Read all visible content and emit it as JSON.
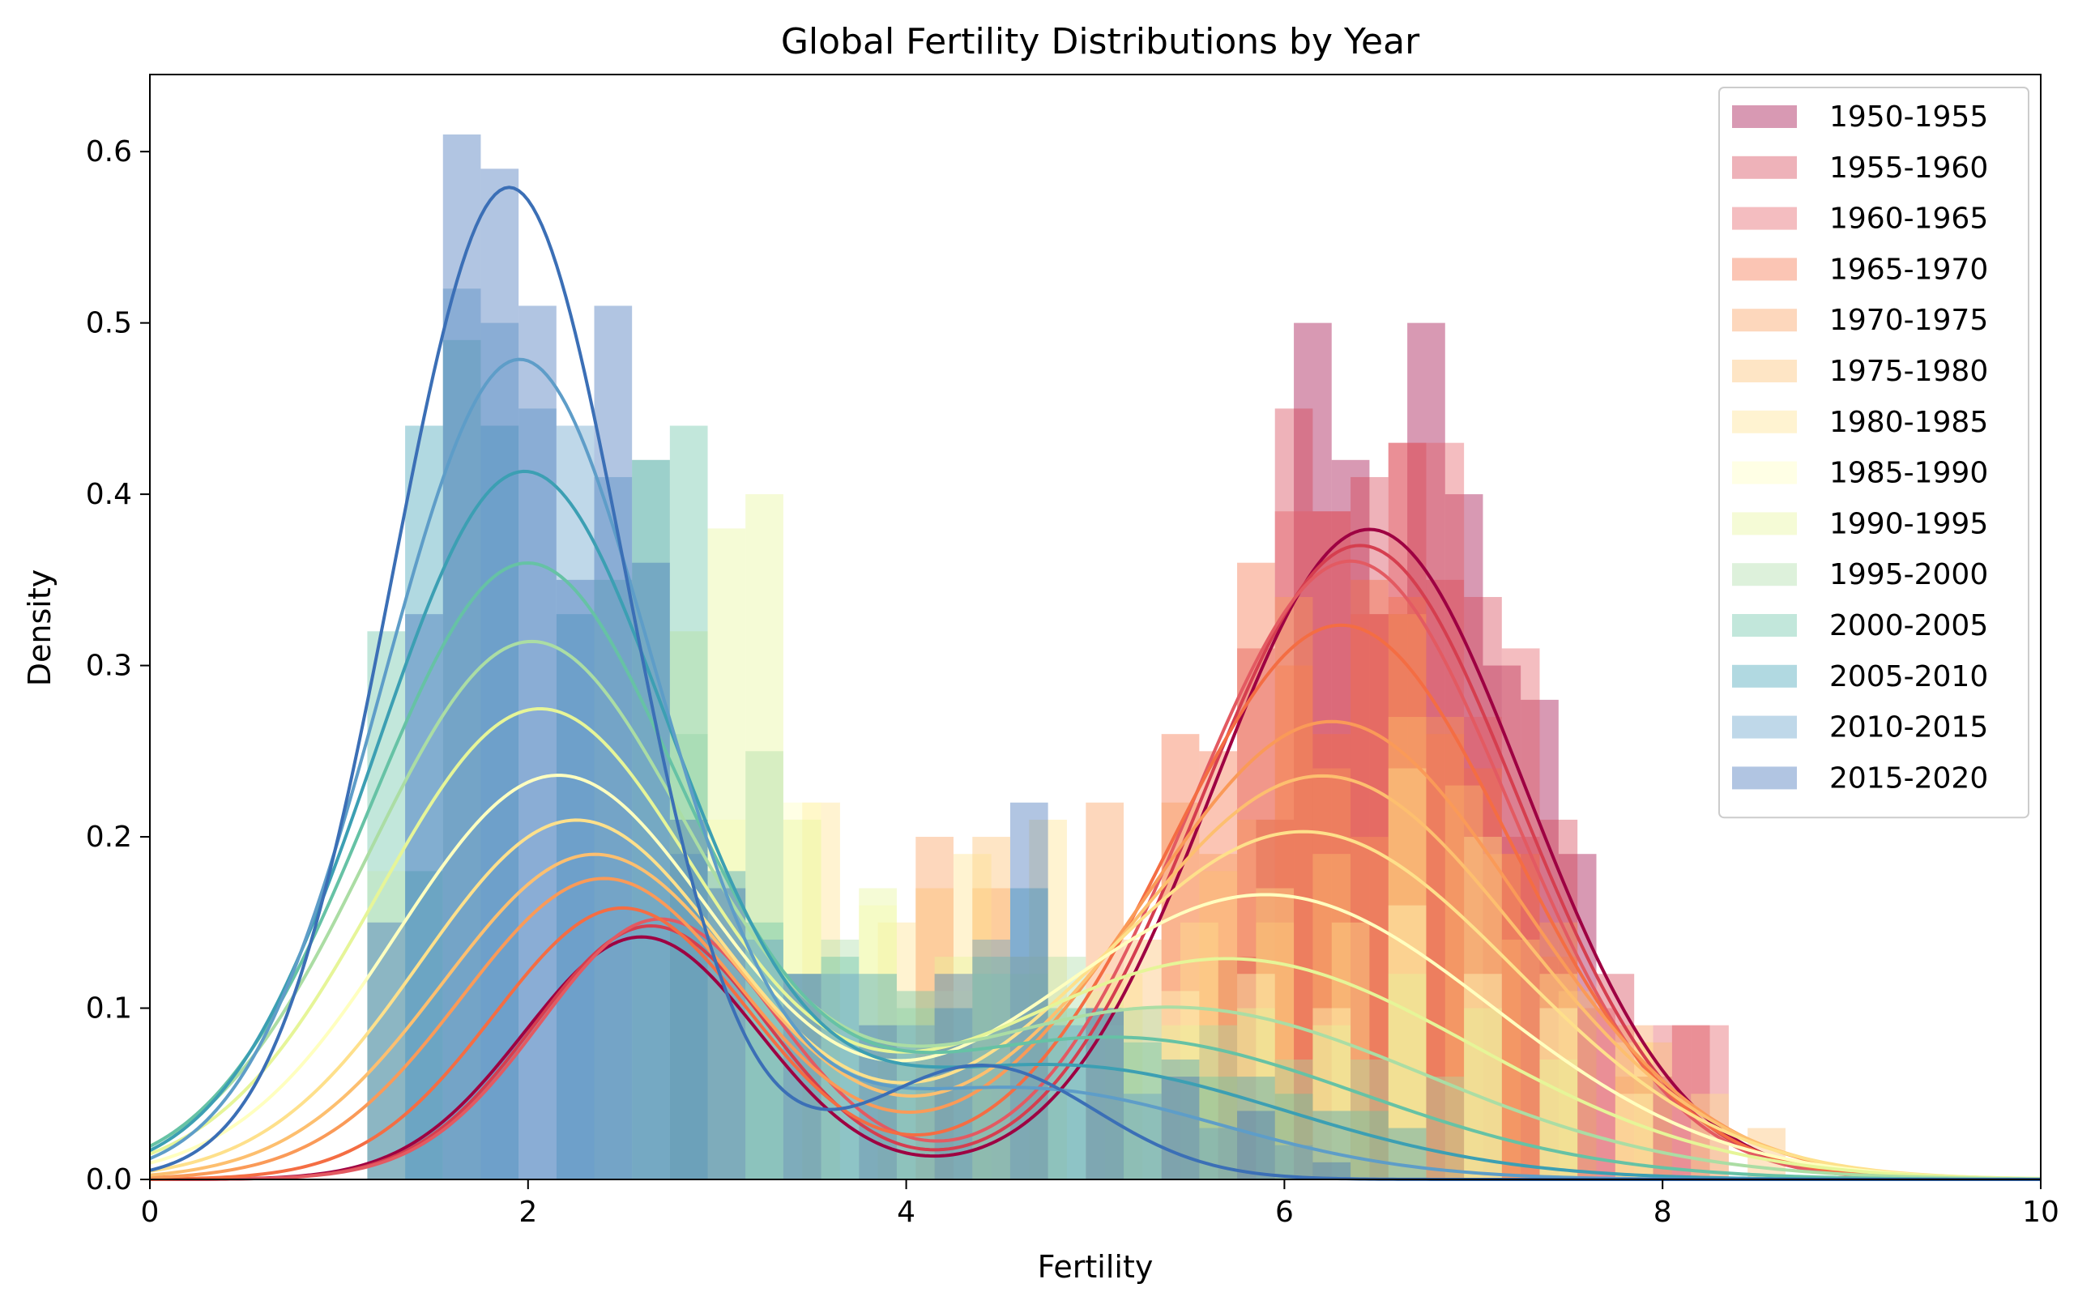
{
  "chart_data": {
    "type": "histogram",
    "title": "Global Fertility Distributions by Year",
    "xlabel": "Fertility",
    "ylabel": "Density",
    "xlim": [
      0,
      10
    ],
    "ylim": [
      0,
      0.645
    ],
    "xticks": [
      0,
      2,
      4,
      6,
      8,
      10
    ],
    "xtick_labels": [
      "0",
      "2",
      "4",
      "6",
      "8",
      "10"
    ],
    "yticks": [
      0.0,
      0.1,
      0.2,
      0.3,
      0.4,
      0.5,
      0.6
    ],
    "ytick_labels": [
      "0.0",
      "0.1",
      "0.2",
      "0.3",
      "0.4",
      "0.5",
      "0.6"
    ],
    "grid": false,
    "legend_position": "top-right",
    "series": [
      {
        "name": "1950-1955",
        "color": "#9e0142",
        "kde": [
          {
            "w": 0.22,
            "m": 2.6,
            "s": 0.62
          },
          {
            "w": 0.78,
            "m": 6.45,
            "s": 0.82
          }
        ],
        "bars": [
          [
            5.65,
            0.13
          ],
          [
            5.85,
            0.21
          ],
          [
            6.05,
            0.5
          ],
          [
            6.25,
            0.42
          ],
          [
            6.45,
            0.33
          ],
          [
            6.65,
            0.5
          ],
          [
            6.85,
            0.4
          ],
          [
            7.05,
            0.3
          ],
          [
            7.25,
            0.28
          ],
          [
            7.45,
            0.19
          ],
          [
            7.85,
            0.06
          ]
        ]
      },
      {
        "name": "1955-1960",
        "color": "#d53e4f",
        "kde": [
          {
            "w": 0.23,
            "m": 2.65,
            "s": 0.62
          },
          {
            "w": 0.77,
            "m": 6.4,
            "s": 0.83
          }
        ],
        "bars": [
          [
            5.75,
            0.31
          ],
          [
            5.95,
            0.45
          ],
          [
            6.15,
            0.39
          ],
          [
            6.35,
            0.41
          ],
          [
            6.55,
            0.43
          ],
          [
            6.75,
            0.35
          ],
          [
            6.95,
            0.34
          ],
          [
            7.15,
            0.2
          ],
          [
            7.35,
            0.21
          ],
          [
            7.65,
            0.12
          ],
          [
            8.05,
            0.09
          ]
        ]
      },
      {
        "name": "1960-1965",
        "color": "#e35a62",
        "kde": [
          {
            "w": 0.24,
            "m": 2.7,
            "s": 0.63
          },
          {
            "w": 0.76,
            "m": 6.35,
            "s": 0.84
          }
        ],
        "bars": [
          [
            5.95,
            0.39
          ],
          [
            6.15,
            0.39
          ],
          [
            6.35,
            0.33
          ],
          [
            6.55,
            0.43
          ],
          [
            6.75,
            0.43
          ],
          [
            6.95,
            0.27
          ],
          [
            7.15,
            0.31
          ],
          [
            7.55,
            0.1
          ],
          [
            7.95,
            0.09
          ],
          [
            8.15,
            0.09
          ]
        ]
      },
      {
        "name": "1965-1970",
        "color": "#f46d43",
        "kde": [
          {
            "w": 0.27,
            "m": 2.5,
            "s": 0.68
          },
          {
            "w": 0.73,
            "m": 6.3,
            "s": 0.9
          }
        ],
        "bars": [
          [
            5.35,
            0.26
          ],
          [
            5.55,
            0.25
          ],
          [
            5.75,
            0.36
          ],
          [
            5.95,
            0.3
          ],
          [
            6.15,
            0.26
          ],
          [
            6.35,
            0.35
          ],
          [
            6.55,
            0.34
          ],
          [
            6.75,
            0.26
          ],
          [
            6.95,
            0.24
          ],
          [
            7.15,
            0.19
          ],
          [
            7.35,
            0.13
          ],
          [
            7.75,
            0.06
          ]
        ]
      },
      {
        "name": "1970-1975",
        "color": "#fa9a58",
        "kde": [
          {
            "w": 0.33,
            "m": 2.4,
            "s": 0.75
          },
          {
            "w": 0.67,
            "m": 6.25,
            "s": 1.0
          }
        ],
        "bars": [
          [
            4.05,
            0.2
          ],
          [
            4.35,
            0.17
          ],
          [
            4.95,
            0.22
          ],
          [
            5.35,
            0.22
          ],
          [
            5.55,
            0.19
          ],
          [
            5.75,
            0.21
          ],
          [
            5.95,
            0.34
          ],
          [
            6.15,
            0.24
          ],
          [
            6.35,
            0.2
          ],
          [
            6.55,
            0.33
          ],
          [
            6.75,
            0.27
          ],
          [
            7.05,
            0.19
          ],
          [
            7.35,
            0.15
          ],
          [
            7.75,
            0.09
          ]
        ]
      },
      {
        "name": "1975-1980",
        "color": "#fdbf6f",
        "kde": [
          {
            "w": 0.38,
            "m": 2.35,
            "s": 0.8
          },
          {
            "w": 0.62,
            "m": 6.2,
            "s": 1.05
          }
        ],
        "bars": [
          [
            4.05,
            0.17
          ],
          [
            4.35,
            0.2
          ],
          [
            4.55,
            0.13
          ],
          [
            5.15,
            0.14
          ],
          [
            5.55,
            0.18
          ],
          [
            5.85,
            0.15
          ],
          [
            6.15,
            0.19
          ],
          [
            6.55,
            0.27
          ],
          [
            6.85,
            0.23
          ],
          [
            7.15,
            0.14
          ],
          [
            7.45,
            0.11
          ],
          [
            7.85,
            0.08
          ],
          [
            8.45,
            0.03
          ]
        ]
      },
      {
        "name": "1980-1985",
        "color": "#fee08b",
        "kde": [
          {
            "w": 0.43,
            "m": 2.25,
            "s": 0.82
          },
          {
            "w": 0.57,
            "m": 6.1,
            "s": 1.12
          }
        ],
        "bars": [
          [
            3.45,
            0.22
          ],
          [
            3.85,
            0.15
          ],
          [
            4.25,
            0.19
          ],
          [
            4.65,
            0.21
          ],
          [
            5.05,
            0.12
          ],
          [
            5.45,
            0.15
          ],
          [
            5.85,
            0.17
          ],
          [
            6.25,
            0.15
          ],
          [
            6.55,
            0.24
          ],
          [
            6.95,
            0.2
          ],
          [
            7.35,
            0.12
          ],
          [
            7.75,
            0.08
          ],
          [
            8.15,
            0.05
          ]
        ]
      },
      {
        "name": "1985-1990",
        "color": "#ffffbf",
        "kde": [
          {
            "w": 0.5,
            "m": 2.15,
            "s": 0.85
          },
          {
            "w": 0.5,
            "m": 5.9,
            "s": 1.2
          }
        ],
        "bars": [
          [
            1.15,
            0.18
          ],
          [
            2.95,
            0.21
          ],
          [
            3.35,
            0.22
          ],
          [
            3.75,
            0.16
          ],
          [
            4.15,
            0.11
          ],
          [
            4.55,
            0.13
          ],
          [
            4.95,
            0.09
          ],
          [
            5.35,
            0.11
          ],
          [
            5.75,
            0.12
          ],
          [
            6.15,
            0.1
          ],
          [
            6.55,
            0.16
          ],
          [
            6.95,
            0.12
          ],
          [
            7.35,
            0.1
          ],
          [
            7.75,
            0.05
          ]
        ]
      },
      {
        "name": "1990-1995",
        "color": "#e6f598",
        "kde": [
          {
            "w": 0.58,
            "m": 2.05,
            "s": 0.85
          },
          {
            "w": 0.42,
            "m": 5.7,
            "s": 1.3
          }
        ],
        "bars": [
          [
            2.75,
            0.32
          ],
          [
            2.95,
            0.38
          ],
          [
            3.15,
            0.4
          ],
          [
            3.35,
            0.21
          ],
          [
            3.75,
            0.17
          ],
          [
            4.15,
            0.13
          ],
          [
            4.55,
            0.12
          ],
          [
            4.95,
            0.11
          ],
          [
            5.35,
            0.09
          ],
          [
            5.75,
            0.1
          ],
          [
            6.15,
            0.09
          ],
          [
            6.55,
            0.12
          ],
          [
            6.95,
            0.1
          ],
          [
            7.35,
            0.07
          ]
        ]
      },
      {
        "name": "1995-2000",
        "color": "#abdda4",
        "kde": [
          {
            "w": 0.66,
            "m": 2.0,
            "s": 0.85
          },
          {
            "w": 0.34,
            "m": 5.4,
            "s": 1.35
          }
        ],
        "bars": [
          [
            2.55,
            0.42
          ],
          [
            2.75,
            0.26
          ],
          [
            3.15,
            0.25
          ],
          [
            3.55,
            0.14
          ],
          [
            3.95,
            0.1
          ],
          [
            4.35,
            0.12
          ],
          [
            4.75,
            0.13
          ],
          [
            5.15,
            0.1
          ],
          [
            5.55,
            0.09
          ],
          [
            5.95,
            0.07
          ],
          [
            6.35,
            0.07
          ],
          [
            6.75,
            0.06
          ]
        ]
      },
      {
        "name": "2000-2005",
        "color": "#66c2a5",
        "kde": [
          {
            "w": 0.73,
            "m": 1.98,
            "s": 0.82
          },
          {
            "w": 0.27,
            "m": 5.1,
            "s": 1.3
          }
        ],
        "bars": [
          [
            1.15,
            0.32
          ],
          [
            1.35,
            0.18
          ],
          [
            1.55,
            0.49
          ],
          [
            2.35,
            0.35
          ],
          [
            2.75,
            0.44
          ],
          [
            3.15,
            0.15
          ],
          [
            3.55,
            0.13
          ],
          [
            3.95,
            0.11
          ],
          [
            4.35,
            0.13
          ],
          [
            4.75,
            0.1
          ],
          [
            5.15,
            0.08
          ],
          [
            5.55,
            0.06
          ],
          [
            5.95,
            0.05
          ],
          [
            6.35,
            0.04
          ]
        ]
      },
      {
        "name": "2005-2010",
        "color": "#3c9fb3",
        "kde": [
          {
            "w": 0.8,
            "m": 1.97,
            "s": 0.78
          },
          {
            "w": 0.2,
            "m": 4.8,
            "s": 1.2
          }
        ],
        "bars": [
          [
            1.35,
            0.44
          ],
          [
            1.75,
            0.44
          ],
          [
            2.15,
            0.33
          ],
          [
            2.55,
            0.42
          ],
          [
            2.95,
            0.18
          ],
          [
            3.35,
            0.12
          ],
          [
            3.75,
            0.12
          ],
          [
            4.15,
            0.1
          ],
          [
            4.55,
            0.17
          ],
          [
            4.95,
            0.1
          ],
          [
            5.35,
            0.07
          ],
          [
            5.75,
            0.06
          ],
          [
            6.15,
            0.04
          ],
          [
            6.55,
            0.03
          ]
        ]
      },
      {
        "name": "2010-2015",
        "color": "#5e9dc8",
        "kde": [
          {
            "w": 0.86,
            "m": 1.95,
            "s": 0.72
          },
          {
            "w": 0.14,
            "m": 4.6,
            "s": 1.05
          }
        ],
        "bars": [
          [
            1.55,
            0.52
          ],
          [
            1.75,
            0.5
          ],
          [
            1.95,
            0.45
          ],
          [
            2.15,
            0.44
          ],
          [
            2.35,
            0.41
          ],
          [
            2.75,
            0.19
          ],
          [
            3.15,
            0.14
          ],
          [
            3.55,
            0.12
          ],
          [
            3.95,
            0.09
          ],
          [
            4.35,
            0.14
          ],
          [
            4.75,
            0.09
          ],
          [
            5.15,
            0.05
          ],
          [
            5.55,
            0.03
          ],
          [
            5.95,
            0.02
          ]
        ]
      },
      {
        "name": "2015-2020",
        "color": "#3b6fb6",
        "kde": [
          {
            "w": 0.9,
            "m": 1.9,
            "s": 0.62
          },
          {
            "w": 0.1,
            "m": 4.4,
            "s": 0.6
          }
        ],
        "bars": [
          [
            1.15,
            0.15
          ],
          [
            1.35,
            0.33
          ],
          [
            1.55,
            0.61
          ],
          [
            1.75,
            0.59
          ],
          [
            1.95,
            0.51
          ],
          [
            2.15,
            0.35
          ],
          [
            2.35,
            0.51
          ],
          [
            2.55,
            0.36
          ],
          [
            2.75,
            0.21
          ],
          [
            2.95,
            0.17
          ],
          [
            3.35,
            0.12
          ],
          [
            3.75,
            0.09
          ],
          [
            4.15,
            0.12
          ],
          [
            4.55,
            0.22
          ],
          [
            4.95,
            0.1
          ],
          [
            5.35,
            0.06
          ],
          [
            5.75,
            0.04
          ],
          [
            6.15,
            0.01
          ]
        ]
      }
    ]
  }
}
